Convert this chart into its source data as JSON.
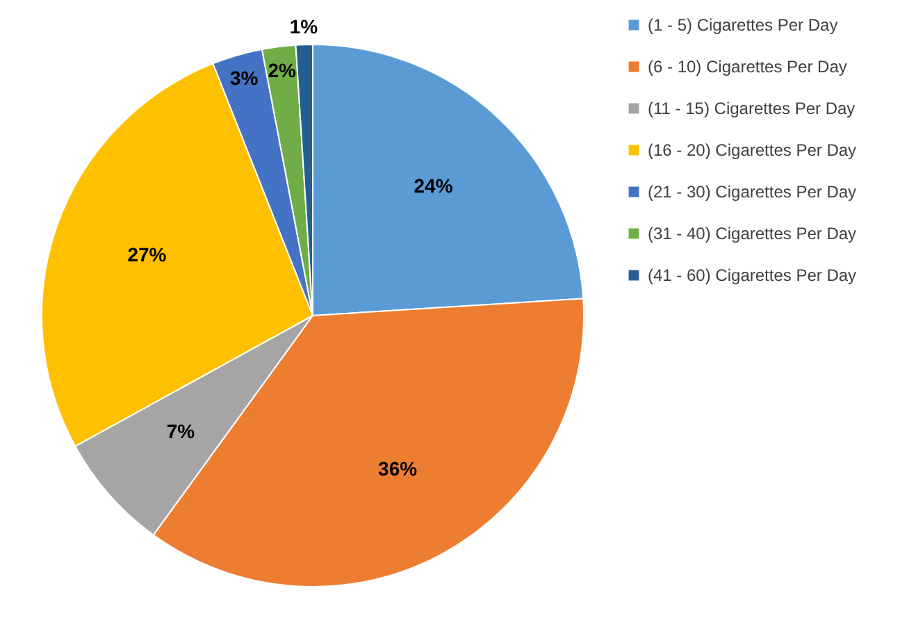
{
  "chart_data": {
    "type": "pie",
    "categories": [
      "(1 - 5) Cigarettes Per Day",
      "(6 - 10) Cigarettes Per Day",
      "(11 - 15) Cigarettes Per Day",
      "(16 - 20) Cigarettes Per Day",
      "(21 - 30) Cigarettes Per Day",
      "(31 - 40) Cigarettes Per Day",
      "(41 - 60) Cigarettes Per Day"
    ],
    "values": [
      24,
      36,
      7,
      27,
      3,
      2,
      1
    ],
    "colors": [
      "#5b9bd5",
      "#ed7d31",
      "#a5a5a5",
      "#ffc000",
      "#4472c4",
      "#70ad47",
      "#255e91"
    ],
    "value_labels": [
      "24%",
      "36%",
      "7%",
      "27%",
      "3%",
      "2%",
      "1%"
    ],
    "legend": "right"
  }
}
